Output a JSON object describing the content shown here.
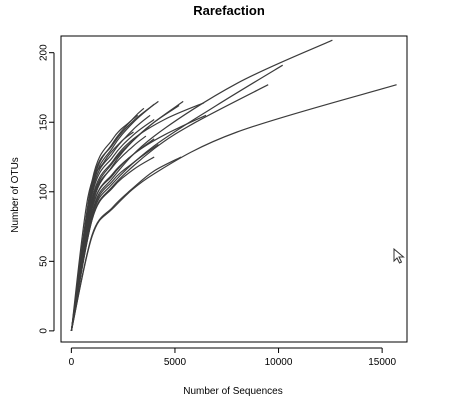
{
  "chart_data": {
    "type": "line",
    "title": "Rarefaction",
    "xlabel": "Number of Sequences",
    "ylabel": "Number of OTUs",
    "xlim": [
      -500,
      16200
    ],
    "ylim": [
      -8,
      212
    ],
    "xticks": [
      0,
      5000,
      10000,
      15000
    ],
    "yticks": [
      0,
      50,
      100,
      150,
      200
    ],
    "grid": false,
    "legend": "none",
    "line_color": "#3c3c3c",
    "series": [
      {
        "x": [
          0,
          1000,
          2000,
          4000,
          8000,
          12600
        ],
        "y": [
          0,
          85,
          110,
          140,
          178,
          209
        ]
      },
      {
        "x": [
          0,
          1000,
          2000,
          4000,
          8000,
          15700
        ],
        "y": [
          0,
          68,
          88,
          113,
          143,
          177
        ]
      },
      {
        "x": [
          0,
          1000,
          2000,
          4000,
          7000,
          10200
        ],
        "y": [
          0,
          82,
          106,
          133,
          162,
          191
        ]
      },
      {
        "x": [
          0,
          1000,
          2000,
          4000,
          6000,
          9500
        ],
        "y": [
          0,
          80,
          104,
          131,
          150,
          177
        ]
      },
      {
        "x": [
          0,
          1000,
          2000,
          3000,
          4500,
          6400
        ],
        "y": [
          0,
          95,
          122,
          138,
          152,
          164
        ]
      },
      {
        "x": [
          0,
          1000,
          2000,
          3000,
          4500,
          6500
        ],
        "y": [
          0,
          88,
          112,
          127,
          141,
          155
        ]
      },
      {
        "x": [
          0,
          1000,
          2000,
          3000,
          4000,
          5200
        ],
        "y": [
          0,
          90,
          119,
          137,
          150,
          162
        ]
      },
      {
        "x": [
          0,
          1000,
          2000,
          3000,
          4000,
          5400
        ],
        "y": [
          0,
          93,
          121,
          137,
          150,
          165
        ]
      },
      {
        "x": [
          0,
          1000,
          2000,
          3000,
          4000
        ],
        "y": [
          0,
          102,
          132,
          150,
          163
        ]
      },
      {
        "x": [
          0,
          1000,
          2000,
          3000,
          4200
        ],
        "y": [
          0,
          106,
          134,
          151,
          165
        ]
      },
      {
        "x": [
          0,
          1000,
          2000,
          3000,
          3800
        ],
        "y": [
          0,
          100,
          128,
          145,
          155
        ]
      },
      {
        "x": [
          0,
          1000,
          2000,
          3000,
          4000
        ],
        "y": [
          0,
          98,
          125,
          141,
          152
        ]
      },
      {
        "x": [
          0,
          1000,
          2000,
          3000,
          3500
        ],
        "y": [
          0,
          104,
          135,
          153,
          160
        ]
      },
      {
        "x": [
          0,
          1000,
          2000,
          2800,
          3200
        ],
        "y": [
          0,
          108,
          138,
          150,
          155
        ]
      },
      {
        "x": [
          0,
          1000,
          2000,
          3000,
          4000
        ],
        "y": [
          0,
          88,
          113,
          127,
          138
        ]
      },
      {
        "x": [
          0,
          1000,
          2000,
          3000,
          4200
        ],
        "y": [
          0,
          84,
          108,
          121,
          134
        ]
      },
      {
        "x": [
          0,
          1000,
          2000,
          3000,
          4000
        ],
        "y": [
          0,
          80,
          103,
          116,
          125
        ]
      },
      {
        "x": [
          0,
          1000,
          2000,
          3000,
          4000,
          5300
        ],
        "y": [
          0,
          69,
          89,
          103,
          115,
          125
        ]
      },
      {
        "x": [
          0,
          800,
          1600,
          2400,
          3000
        ],
        "y": [
          0,
          96,
          122,
          136,
          143
        ]
      },
      {
        "x": [
          0,
          1000,
          2000,
          3000,
          3600
        ],
        "y": [
          0,
          92,
          118,
          133,
          140
        ]
      }
    ]
  }
}
